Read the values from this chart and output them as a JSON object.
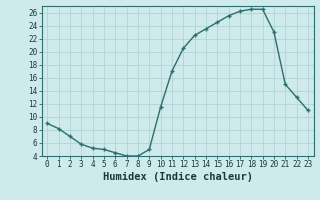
{
  "xlabel": "Humidex (Indice chaleur)",
  "x": [
    0,
    1,
    2,
    3,
    4,
    5,
    6,
    7,
    8,
    9,
    10,
    11,
    12,
    13,
    14,
    15,
    16,
    17,
    18,
    19,
    20,
    21,
    22,
    23
  ],
  "y": [
    9,
    8.2,
    7,
    5.8,
    5.2,
    5.0,
    4.5,
    4.0,
    4.0,
    5.0,
    11.5,
    17.0,
    20.5,
    22.5,
    23.5,
    24.5,
    25.5,
    26.2,
    26.5,
    26.5,
    23.0,
    15.0,
    13.0,
    11.0
  ],
  "line_color": "#2d6e6e",
  "marker": "+",
  "bg_color": "#ceeaea",
  "grid_color": "#b0d4d4",
  "ylim": [
    4,
    27
  ],
  "xlim": [
    -0.5,
    23.5
  ],
  "yticks": [
    4,
    6,
    8,
    10,
    12,
    14,
    16,
    18,
    20,
    22,
    24,
    26
  ],
  "xticks": [
    0,
    1,
    2,
    3,
    4,
    5,
    6,
    7,
    8,
    9,
    10,
    11,
    12,
    13,
    14,
    15,
    16,
    17,
    18,
    19,
    20,
    21,
    22,
    23
  ],
  "tick_label_fontsize": 5.5,
  "xlabel_fontsize": 7.5
}
